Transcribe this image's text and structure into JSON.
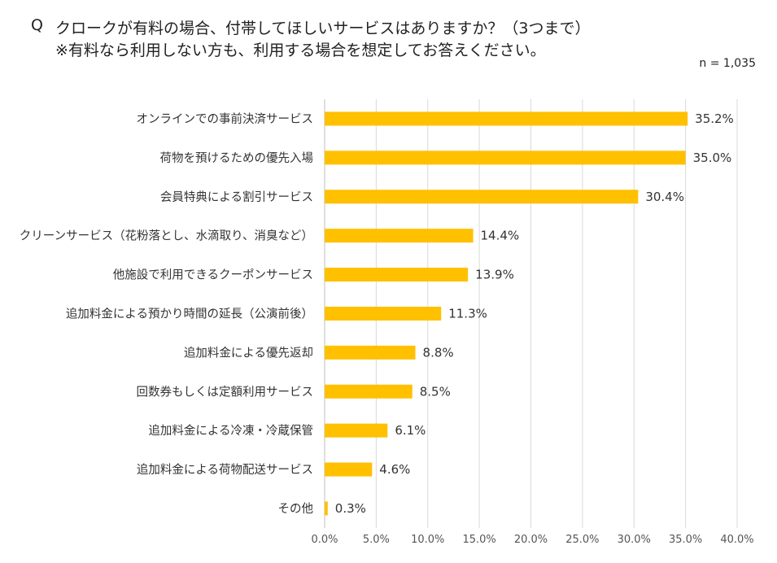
{
  "header": {
    "q_mark": "Q",
    "question_line1": "クロークが有料の場合、付帯してほしいサービスはありますか？（3つまで）",
    "question_line2": "※有料なら利用しない方も、利用する場合を想定してお答えください。",
    "sample_size": "n = 1,035"
  },
  "colors": {
    "bar": "#FFC000",
    "grid": "#D9D9D9",
    "axis": "#BFBFBF"
  },
  "chart_data": {
    "type": "bar",
    "orientation": "horizontal",
    "title": "クロークが有料の場合、付帯してほしいサービスはありますか？（3つまで）",
    "categories": [
      "オンラインでの事前決済サービス",
      "荷物を預けるための優先入場",
      "会員特典による割引サービス",
      "クリーンサービス（花粉落とし、水滴取り、消臭など）",
      "他施設で利用できるクーポンサービス",
      "追加料金による預かり時間の延長（公演前後）",
      "追加料金による優先返却",
      "回数券もしくは定額利用サービス",
      "追加料金による冷凍・冷蔵保管",
      "追加料金による荷物配送サービス",
      "その他"
    ],
    "values": [
      35.2,
      35.0,
      30.4,
      14.4,
      13.9,
      11.3,
      8.8,
      8.5,
      6.1,
      4.6,
      0.3
    ],
    "value_labels": [
      "35.2%",
      "35.0%",
      "30.4%",
      "14.4%",
      "13.9%",
      "11.3%",
      "8.8%",
      "8.5%",
      "6.1%",
      "4.6%",
      "0.3%"
    ],
    "xlim": [
      0,
      40
    ],
    "x_ticks": [
      "0.0%",
      "5.0%",
      "10.0%",
      "15.0%",
      "20.0%",
      "25.0%",
      "30.0%",
      "35.0%",
      "40.0%"
    ],
    "grid": true
  }
}
